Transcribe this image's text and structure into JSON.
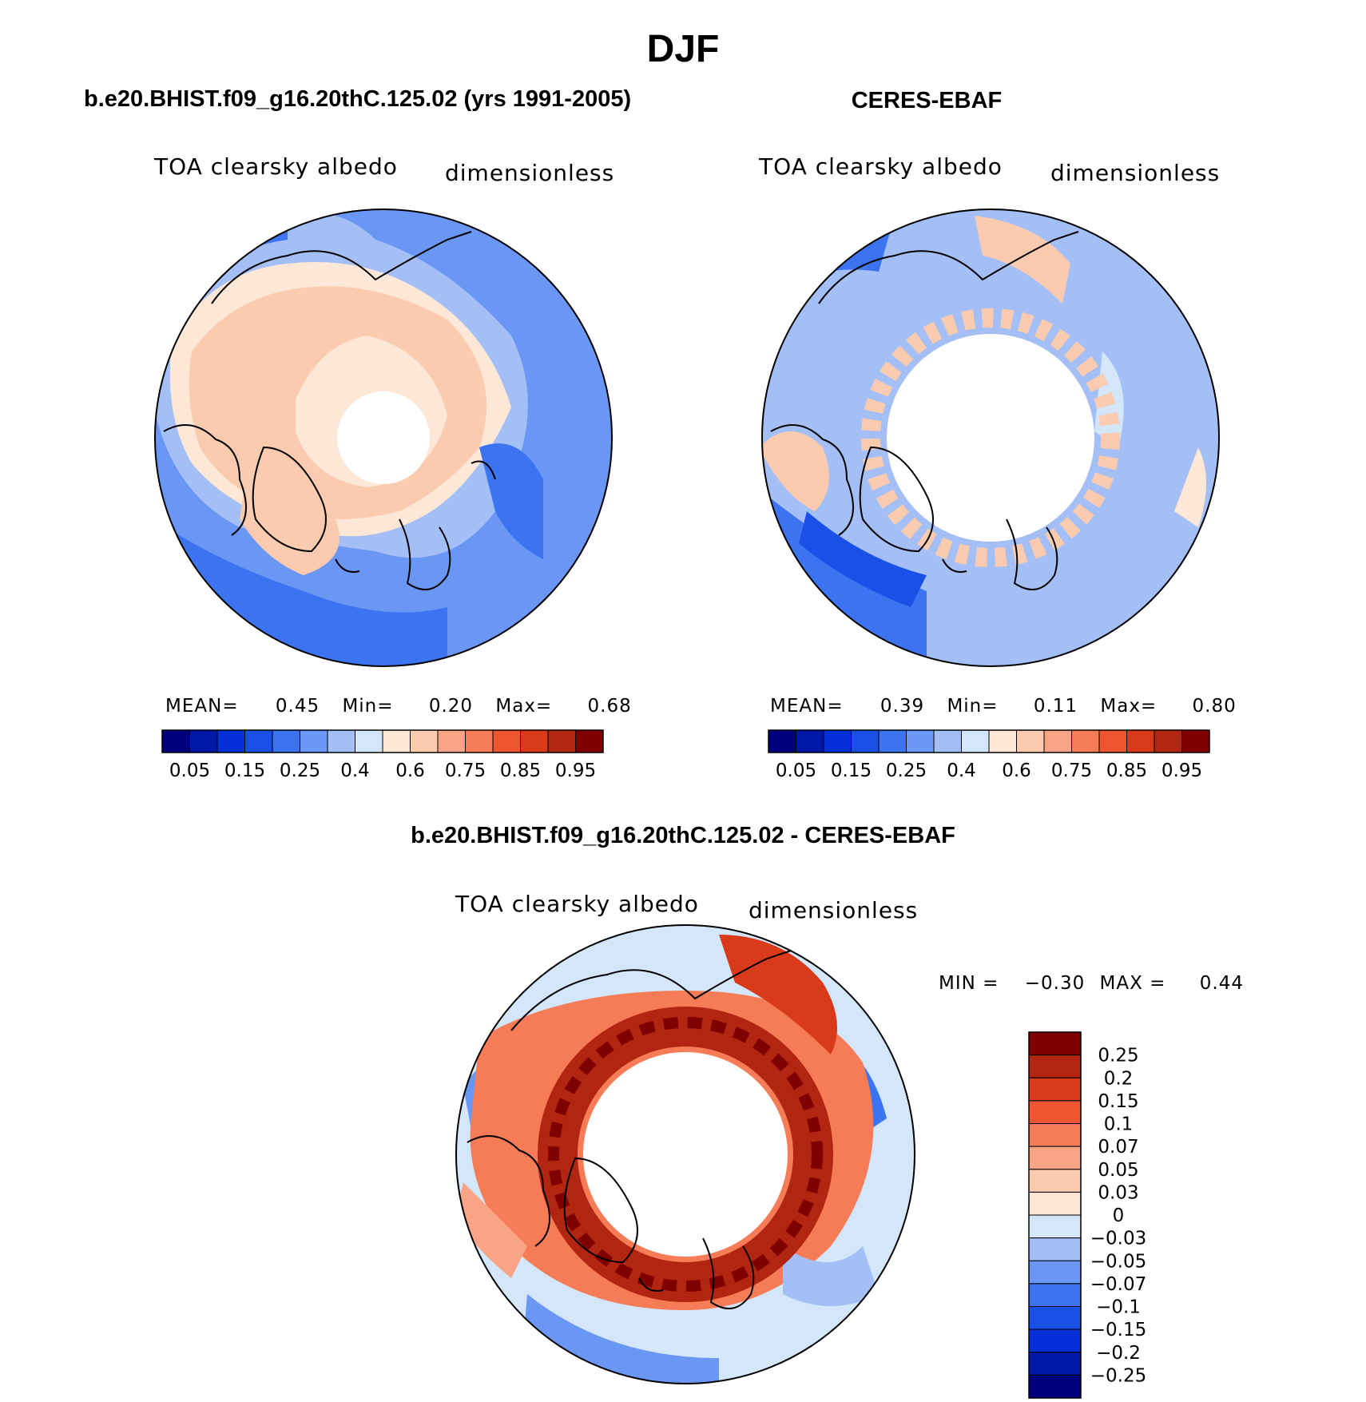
{
  "figure_title": "DJF",
  "chart_data": [
    {
      "type": "heatmap",
      "projection": "north-polar-stereographic",
      "title": "b.e20.BHIST.f09_g16.20thC.125.02 (yrs 1991-2005)",
      "variable_label": "TOA clearsky albedo",
      "units_label": "dimensionless",
      "stats": {
        "mean_label": "MEAN=",
        "mean": "0.45",
        "min_label": "Min=",
        "min": "0.20",
        "max_label": "Max=",
        "max": "0.68"
      },
      "colorbar_orientation": "horizontal",
      "colorbar_labels": [
        "0.05",
        "0.15",
        "0.25",
        "0.4",
        "0.6",
        "0.75",
        "0.85",
        "0.95"
      ],
      "colorbar_colors": [
        "#00007f",
        "#0018a8",
        "#0530d8",
        "#1a4fe8",
        "#3b73f0",
        "#6a96f4",
        "#a3bff6",
        "#d4e6fa",
        "#fde8d8",
        "#fbcbb0",
        "#f9a585",
        "#f57c56",
        "#ef5530",
        "#d93a1a",
        "#b22510",
        "#7f0000"
      ],
      "dominant_value_fill": "#fbcbb0",
      "missing_polar_cap": true
    },
    {
      "type": "heatmap",
      "projection": "north-polar-stereographic",
      "title": "CERES-EBAF",
      "variable_label": "TOA clearsky albedo",
      "units_label": "dimensionless",
      "stats": {
        "mean_label": "MEAN=",
        "mean": "0.39",
        "min_label": "Min=",
        "min": "0.11",
        "max_label": "Max=",
        "max": "0.80"
      },
      "colorbar_orientation": "horizontal",
      "colorbar_labels": [
        "0.05",
        "0.15",
        "0.25",
        "0.4",
        "0.6",
        "0.75",
        "0.85",
        "0.95"
      ],
      "colorbar_colors": [
        "#00007f",
        "#0018a8",
        "#0530d8",
        "#1a4fe8",
        "#3b73f0",
        "#6a96f4",
        "#a3bff6",
        "#d4e6fa",
        "#fde8d8",
        "#fbcbb0",
        "#f9a585",
        "#f57c56",
        "#ef5530",
        "#d93a1a",
        "#b22510",
        "#7f0000"
      ],
      "dominant_value_fill": "#a3bff6",
      "missing_polar_cap": true
    },
    {
      "type": "heatmap",
      "projection": "north-polar-stereographic",
      "title": "b.e20.BHIST.f09_g16.20thC.125.02 - CERES-EBAF",
      "variable_label": "TOA clearsky albedo",
      "units_label": "dimensionless",
      "stats": {
        "min_label": "MIN =",
        "min": "−0.30",
        "max_label": "MAX =",
        "max": "0.44"
      },
      "colorbar_orientation": "vertical",
      "colorbar_labels": [
        "0.25",
        "0.2",
        "0.15",
        "0.1",
        "0.07",
        "0.05",
        "0.03",
        "0",
        "−0.03",
        "−0.05",
        "−0.07",
        "−0.1",
        "−0.15",
        "−0.2",
        "−0.25"
      ],
      "colorbar_colors": [
        "#7f0000",
        "#b22510",
        "#d93a1a",
        "#ef5530",
        "#f57c56",
        "#f9a585",
        "#fbcbb0",
        "#fde8d8",
        "#d4e6fa",
        "#a3bff6",
        "#6a96f4",
        "#3b73f0",
        "#1a4fe8",
        "#0530d8",
        "#0018a8",
        "#00007f"
      ],
      "missing_polar_cap": true
    }
  ]
}
